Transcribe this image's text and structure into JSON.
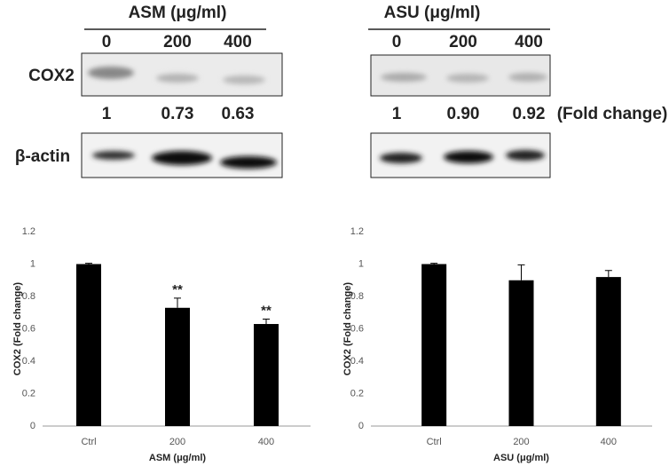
{
  "blot_labels": {
    "protein": "COX2",
    "control": "β-actin",
    "fold_unit": "(Fold change)"
  },
  "blots": [
    {
      "title": "ASM (μg/ml)",
      "lanes": [
        "0",
        "200",
        "400"
      ],
      "fold_change": [
        "1",
        "0.73",
        "0.63"
      ]
    },
    {
      "title": "ASU (μg/ml)",
      "lanes": [
        "0",
        "200",
        "400"
      ],
      "fold_change": [
        "1",
        "0.90",
        "0.92"
      ]
    }
  ],
  "chart_data": [
    {
      "type": "bar",
      "y_label": "COX2  (Fold change)",
      "x_label": "ASM  (μg/ml)",
      "categories": [
        "Ctrl",
        "200",
        "400"
      ],
      "values": [
        1,
        0.73,
        0.63
      ],
      "errors": [
        0.005,
        0.06,
        0.03
      ],
      "annotations": [
        null,
        "**",
        "**"
      ],
      "color": "#000000",
      "ylim": [
        0,
        1.2
      ],
      "yticks": [
        0,
        0.2,
        0.4,
        0.6,
        0.8,
        1,
        1.2
      ],
      "grid": false
    },
    {
      "type": "bar",
      "y_label": "COX2  (Fold change)",
      "x_label": "ASU  (μg/ml)",
      "categories": [
        "Ctrl",
        "200",
        "400"
      ],
      "values": [
        1,
        0.9,
        0.92
      ],
      "errors": [
        0.005,
        0.095,
        0.04
      ],
      "annotations": [
        null,
        null,
        null
      ],
      "color": "#000000",
      "ylim": [
        0,
        1.2
      ],
      "yticks": [
        0,
        0.2,
        0.4,
        0.6,
        0.8,
        1,
        1.2
      ],
      "grid": false
    }
  ]
}
